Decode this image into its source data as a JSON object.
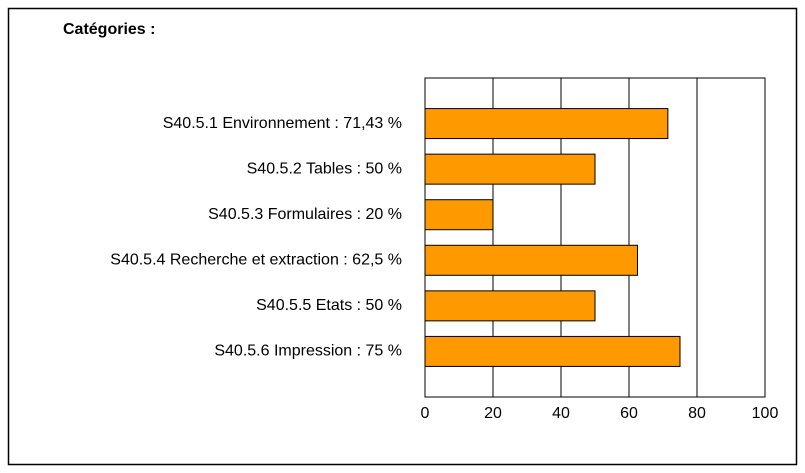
{
  "chart_data": {
    "type": "barh",
    "title": "Catégories :",
    "categories": [
      "S40.5.1 Environnement : 71,43 %",
      "S40.5.2 Tables : 50 %",
      "S40.5.3 Formulaires : 20 %",
      "S40.5.4 Recherche et extraction : 62,5 %",
      "S40.5.5 Etats : 50 %",
      "S40.5.6 Impression : 75 %"
    ],
    "values": [
      71.43,
      50,
      20,
      62.5,
      50,
      75
    ],
    "color": "#ff9900",
    "xlim": [
      0,
      100
    ],
    "xticks": [
      0,
      20,
      40,
      60,
      80,
      100
    ],
    "grid": true
  }
}
